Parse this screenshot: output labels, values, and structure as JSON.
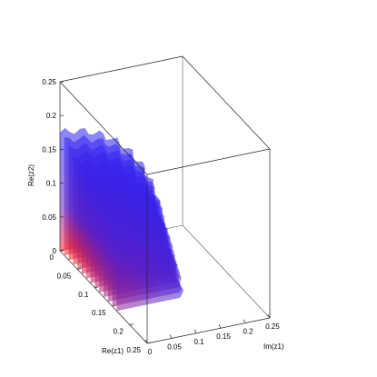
{
  "chart_data": {
    "type": "surface3d",
    "title": "",
    "xlabel": "Re(z1)",
    "ylabel": "Im(z1)",
    "zlabel": "Re(z2)",
    "xlim": [
      0,
      0.25
    ],
    "ylim": [
      0,
      0.25
    ],
    "zlim": [
      0,
      0.25
    ],
    "x_ticks": [
      "0",
      "0.05",
      "0.1",
      "0.15",
      "0.2",
      "0.25"
    ],
    "y_ticks": [
      "0",
      "0.05",
      "0.1",
      "0.15",
      "0.2",
      "0.25"
    ],
    "z_ticks": [
      "0",
      "0.05",
      "0.1",
      "0.15",
      "0.2",
      "0.25"
    ],
    "grid": false,
    "slices": {
      "axis": "Re(z1)",
      "positions": [
        0,
        0.0125,
        0.025,
        0.0375,
        0.05,
        0.0625,
        0.075,
        0.0875,
        0.1,
        0.1125,
        0.125,
        0.1375,
        0.15,
        0.1625
      ],
      "colormap": [
        "#ff1a1a",
        "#2222ff"
      ],
      "alpha": 0.55
    },
    "boundary": {
      "max_Re_z2": 0.175,
      "max_Im_z1": 0.205
    }
  }
}
